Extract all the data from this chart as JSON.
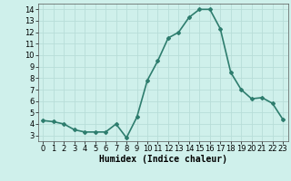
{
  "x": [
    0,
    1,
    2,
    3,
    4,
    5,
    6,
    7,
    8,
    9,
    10,
    11,
    12,
    13,
    14,
    15,
    16,
    17,
    18,
    19,
    20,
    21,
    22,
    23
  ],
  "y": [
    4.3,
    4.2,
    4.0,
    3.5,
    3.3,
    3.3,
    3.3,
    4.0,
    2.8,
    4.6,
    7.8,
    9.5,
    11.5,
    12.0,
    13.3,
    14.0,
    14.0,
    12.3,
    8.5,
    7.0,
    6.2,
    6.3,
    5.8,
    4.4
  ],
  "line_color": "#2e7d6e",
  "marker": "D",
  "marker_size": 2,
  "bg_color": "#cff0eb",
  "grid_color": "#b8ddd8",
  "xlabel": "Humidex (Indice chaleur)",
  "ylim": [
    2.5,
    14.5
  ],
  "xlim": [
    -0.5,
    23.5
  ],
  "yticks": [
    3,
    4,
    5,
    6,
    7,
    8,
    9,
    10,
    11,
    12,
    13,
    14
  ],
  "xticks": [
    0,
    1,
    2,
    3,
    4,
    5,
    6,
    7,
    8,
    9,
    10,
    11,
    12,
    13,
    14,
    15,
    16,
    17,
    18,
    19,
    20,
    21,
    22,
    23
  ],
  "xlabel_fontsize": 7,
  "tick_fontsize": 6,
  "line_width": 1.2
}
